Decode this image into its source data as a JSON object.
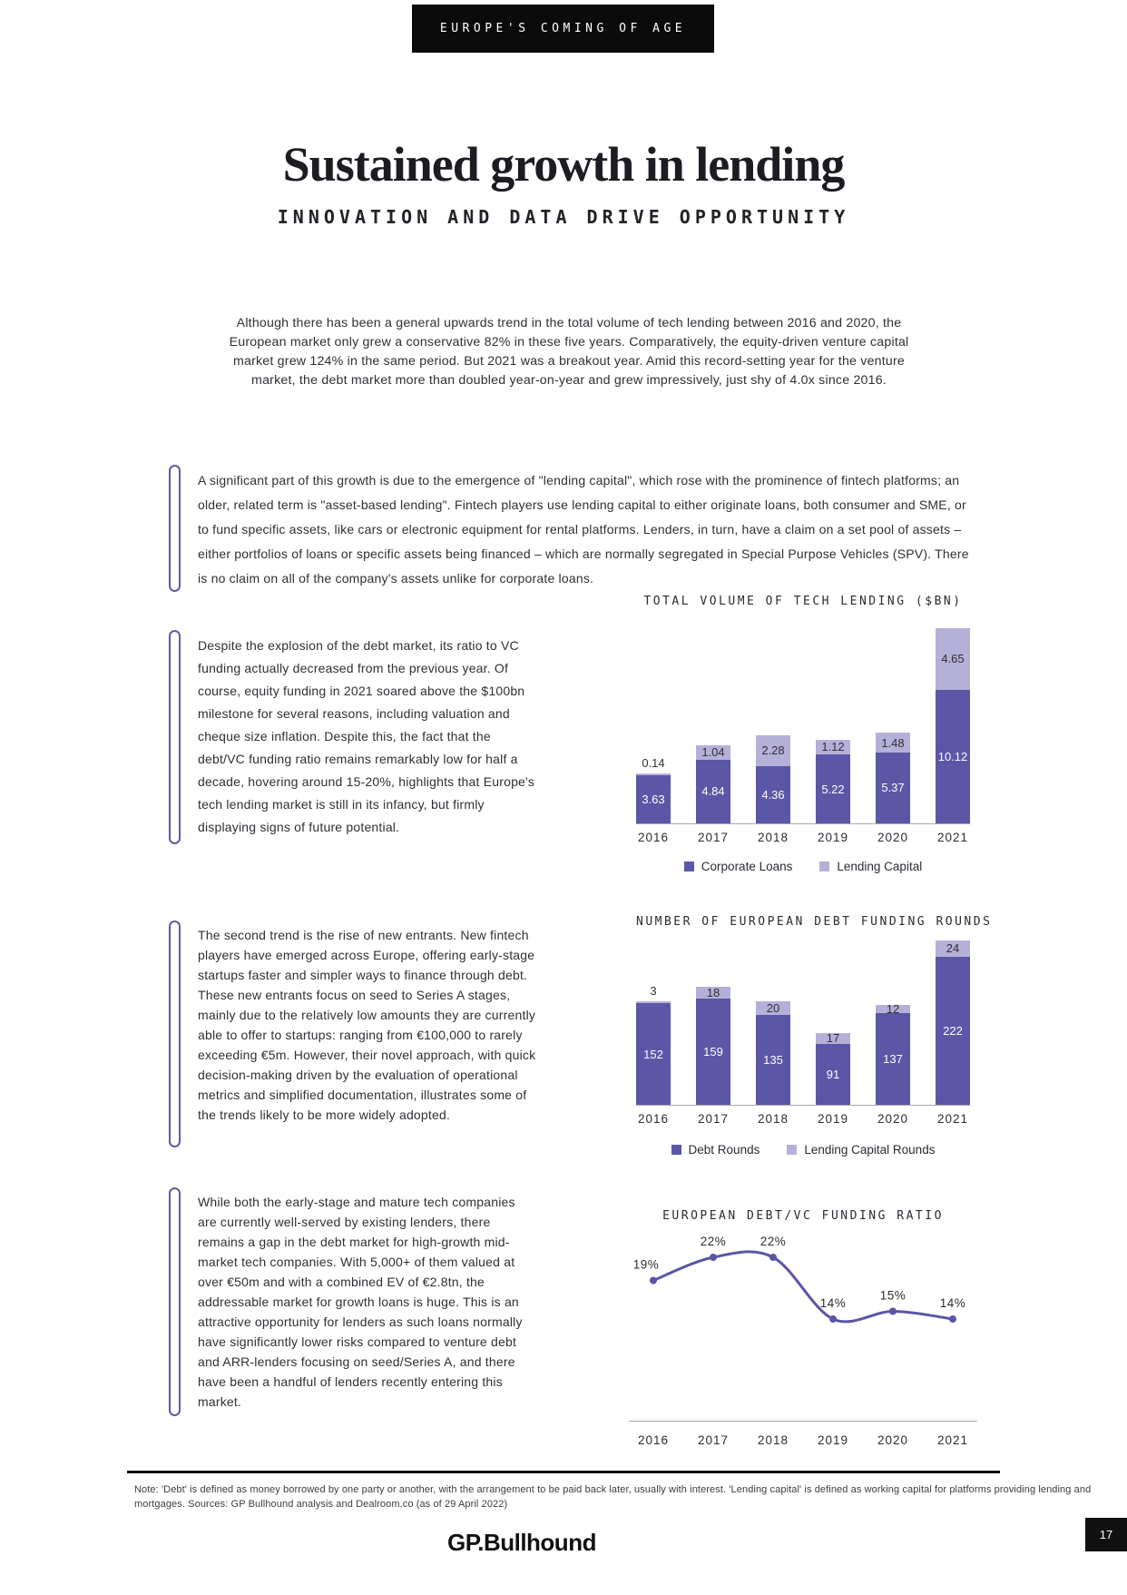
{
  "badge": {
    "label": "EUROPE'S COMING OF AGE"
  },
  "header": {
    "title": "Sustained growth in lending",
    "subtitle": "INNOVATION AND DATA DRIVE OPPORTUNITY"
  },
  "intro": "Although there has been a general upwards trend in the total volume of tech lending between 2016 and 2020, the European market only grew a conservative 82% in these five years. Comparatively, the equity-driven venture capital market grew 124% in the same period. But 2021 was a breakout year. Amid this record-setting year for the venture market, the debt market more than doubled year-on-year and grew impressively, just shy of 4.0x since 2016.",
  "callouts": [
    {
      "text": "A significant part of this growth is due to the emergence of \"lending capital\", which rose with the prominence of fintech platforms; an older, related term is \"asset-based lending\". Fintech players use lending capital to either originate loans, both consumer and SME, or to fund specific assets, like cars or electronic equipment for rental platforms. Lenders, in turn, have a claim on a set pool of assets – either portfolios of loans or specific assets being financed – which are normally segregated in Special Purpose Vehicles (SPV). There is no claim on all of the company's assets unlike for corporate loans."
    },
    {
      "text": "Despite the explosion of the debt market, its ratio to VC funding actually decreased from the previous year. Of course, equity funding in 2021 soared above the $100bn milestone for several reasons, including valuation and cheque size inflation. Despite this, the fact that the debt/VC funding ratio remains remarkably low for half a decade, hovering around 15-20%, highlights that Europe's tech lending market is still in its infancy, but firmly displaying signs of future potential."
    },
    {
      "text": "The second trend is the rise of new entrants. New fintech players have emerged across Europe, offering early-stage startups faster and simpler ways to finance through debt. These new entrants focus on seed to Series A stages, mainly due to the relatively low amounts they are currently able to offer to startups: ranging from €100,000 to rarely exceeding €5m. However, their novel approach, with quick decision-making driven by the evaluation of operational metrics and simplified documentation, illustrates some of the trends likely to be more widely adopted."
    },
    {
      "text": "While both the early-stage and mature tech companies are currently well-served by existing lenders, there remains a gap in the debt market for high-growth mid-market tech companies. With 5,000+ of them valued at over €50m and with a combined EV of €2.8tn, the addressable market for growth loans is huge. This is an attractive opportunity for lenders as such loans normally have significantly lower risks compared to venture debt and ARR-lenders focusing on seed/Series A, and there have been a handful of lenders recently entering this market."
    }
  ],
  "chart_data": [
    {
      "type": "bar",
      "stacked": true,
      "title": "TOTAL VOLUME OF TECH LENDING ($BN)",
      "categories": [
        "2016",
        "2017",
        "2018",
        "2019",
        "2020",
        "2021"
      ],
      "series": [
        {
          "name": "Corporate Loans",
          "color": "#5b57a6",
          "values": [
            3.63,
            4.84,
            4.36,
            5.22,
            5.37,
            10.12
          ],
          "labels": [
            "3.63",
            "4.84",
            "4.36",
            "5.22",
            "5.37",
            "10.12"
          ]
        },
        {
          "name": "Lending Capital",
          "color": "#b5b0d8",
          "values": [
            0.14,
            1.04,
            2.28,
            1.12,
            1.48,
            4.65
          ],
          "labels": [
            "0.14",
            "1.04",
            "2.28",
            "1.12",
            "1.48",
            "4.65"
          ]
        }
      ],
      "legend_position": "bottom",
      "grid": false
    },
    {
      "type": "bar",
      "stacked": true,
      "title": "NUMBER OF EUROPEAN DEBT FUNDING ROUNDS",
      "categories": [
        "2016",
        "2017",
        "2018",
        "2019",
        "2020",
        "2021"
      ],
      "series": [
        {
          "name": "Debt Rounds",
          "color": "#5b57a6",
          "values": [
            152,
            159,
            135,
            91,
            137,
            222
          ],
          "labels": [
            "152",
            "159",
            "135",
            "91",
            "137",
            "222"
          ]
        },
        {
          "name": "Lending Capital Rounds",
          "color": "#b5b0d8",
          "values": [
            3,
            18,
            20,
            17,
            12,
            24
          ],
          "labels": [
            "3",
            "18",
            "20",
            "17",
            "12",
            "24"
          ]
        }
      ],
      "legend_position": "bottom",
      "grid": false
    },
    {
      "type": "line",
      "title": "EUROPEAN DEBT/VC FUNDING RATIO",
      "categories": [
        "2016",
        "2017",
        "2018",
        "2019",
        "2020",
        "2021"
      ],
      "values": [
        19,
        22,
        22,
        14,
        15,
        14
      ],
      "labels": [
        "19%",
        "22%",
        "22%",
        "14%",
        "15%",
        "14%"
      ],
      "color": "#5b55a4",
      "grid": false
    }
  ],
  "colors": {
    "accent_dark": "#5b57a6",
    "accent_light": "#b5b0d8",
    "line": "#5b55a4",
    "bracket": "#5f5aa7"
  },
  "footer": {
    "note": "Note: 'Debt' is defined as money borrowed by one party or another, with the arrangement to be paid back later, usually with interest. 'Lending capital' is defined as working capital for platforms providing lending and mortgages. Sources: GP Bullhound analysis and Dealroom.co (as of 29 April 2022)",
    "logo": "GP.Bullhound",
    "page_number": "17"
  }
}
